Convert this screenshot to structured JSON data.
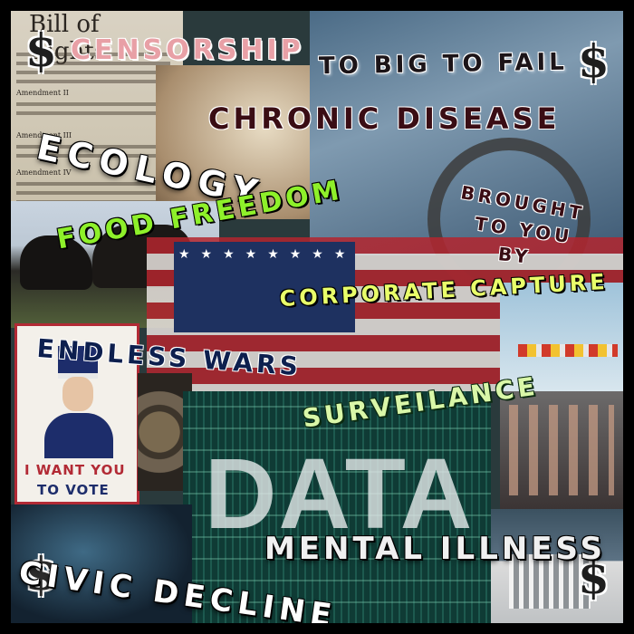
{
  "document": {
    "title": "Bill of Rights",
    "amendments": [
      "Amendment II",
      "Amendment III",
      "Amendment IV"
    ]
  },
  "words": {
    "censorship": "CENSORSHIP",
    "too_big": "TO BIG TO FAIL",
    "chronic": "CHRONIC DISEASE",
    "ecology": "ECOLOGY",
    "brought_1": "BROUGHT",
    "brought_2": "TO YOU",
    "brought_3": "BY",
    "food": "FOOD FREEDOM",
    "corporate": "CORPORATE CAPTURE",
    "wars": "ENDLESS WARS",
    "surveilance": "SURVEILANCE",
    "data": "DATA",
    "mental": "MENTAL ILLNESS",
    "civic": "CIVIC DECLINE"
  },
  "poster": {
    "line1": "I WANT YOU",
    "line2": "TO VOTE"
  },
  "symbols": {
    "dollar": "$"
  },
  "colors": {
    "border": "#000000",
    "green_text": "#8ef02a",
    "navy_text": "#0d1f4e",
    "rose_text": "#e8a0a6"
  }
}
